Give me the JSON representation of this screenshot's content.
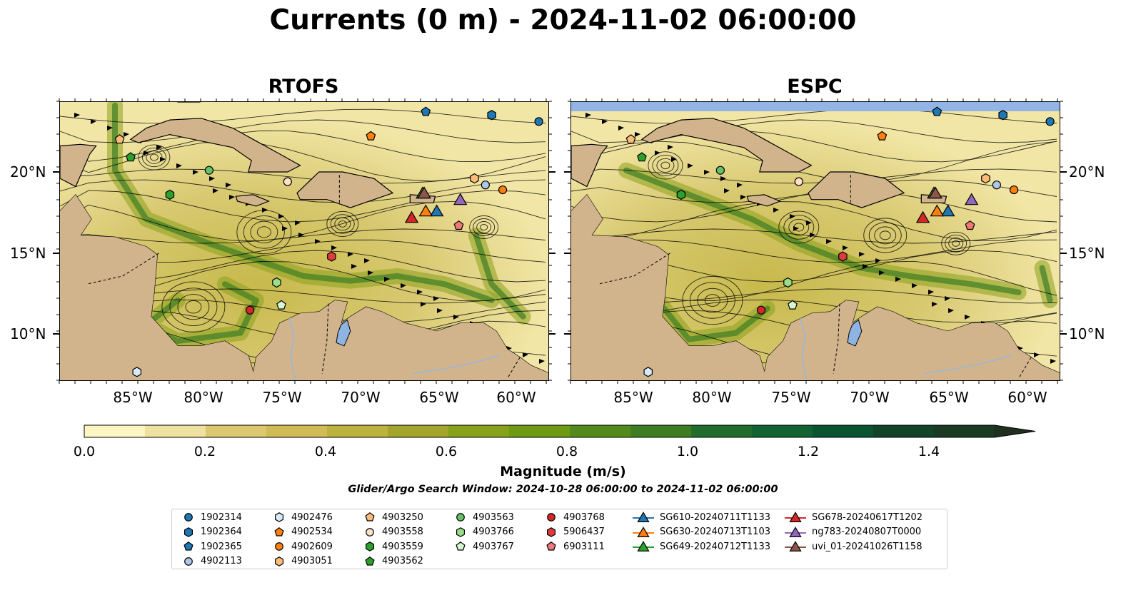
{
  "title": "Currents (0 m) - 2024-11-02 06:00:00",
  "panels": [
    {
      "title": "RTOFS"
    },
    {
      "title": "ESPC"
    }
  ],
  "lat_labels": [
    "20°N",
    "15°N",
    "10°N"
  ],
  "lon_labels": [
    "85°W",
    "80°W",
    "75°W",
    "70°W",
    "65°W",
    "60°W"
  ],
  "colorbar": {
    "label": "Magnitude (m/s)",
    "ticks": [
      "0.0",
      "0.2",
      "0.4",
      "0.6",
      "0.8",
      "1.0",
      "1.2",
      "1.4"
    ],
    "colors": [
      "#fdf6c3",
      "#efe1a0",
      "#dcc86e",
      "#cfbc55",
      "#bcb23e",
      "#a3a52c",
      "#88a11a",
      "#6f9a14",
      "#528b1c",
      "#3f7d23",
      "#226d2c",
      "#116331",
      "#0b5430",
      "#12442a",
      "#1b3a24",
      "#1f301f"
    ]
  },
  "search_window": "Glider/Argo Search Window: 2024-10-28 06:00:00 to 2024-11-02 06:00:00",
  "legend": {
    "columns": [
      [
        {
          "label": "1902314",
          "shape": "circle",
          "color": "#1f77b4"
        },
        {
          "label": "1902364",
          "shape": "hexagon",
          "color": "#1f77b4"
        },
        {
          "label": "1902365",
          "shape": "pentagon",
          "color": "#1f77b4"
        },
        {
          "label": "4902113",
          "shape": "circle",
          "color": "#aec7e8"
        }
      ],
      [
        {
          "label": "4902476",
          "shape": "hexagon",
          "color": "#d6eaf8"
        },
        {
          "label": "4902534",
          "shape": "pentagon",
          "color": "#ff7f0e"
        },
        {
          "label": "4902609",
          "shape": "circle",
          "color": "#ff7f0e"
        },
        {
          "label": "4903051",
          "shape": "hexagon",
          "color": "#ffbb78"
        }
      ],
      [
        {
          "label": "4903250",
          "shape": "pentagon",
          "color": "#ffbb78"
        },
        {
          "label": "4903558",
          "shape": "circle",
          "color": "#fde0c8"
        },
        {
          "label": "4903559",
          "shape": "hexagon",
          "color": "#2ca02c"
        },
        {
          "label": "4903562",
          "shape": "pentagon",
          "color": "#2ca02c"
        }
      ],
      [
        {
          "label": "4903563",
          "shape": "circle",
          "color": "#66c266"
        },
        {
          "label": "4903766",
          "shape": "hexagon",
          "color": "#98df8a"
        },
        {
          "label": "4903767",
          "shape": "pentagon",
          "color": "#d6f5d0"
        }
      ],
      [
        {
          "label": "4903768",
          "shape": "circle",
          "color": "#d62728"
        },
        {
          "label": "5906437",
          "shape": "hexagon",
          "color": "#e03b3b"
        },
        {
          "label": "6903111",
          "shape": "pentagon",
          "color": "#f07878"
        }
      ],
      [
        {
          "label": "SG610-20240711T1133",
          "shape": "triangle",
          "color": "#1f77b4"
        },
        {
          "label": "SG630-20240713T1103",
          "shape": "triangle",
          "color": "#ff7f0e"
        },
        {
          "label": "SG649-20240712T1133",
          "shape": "triangle",
          "color": "#2ca02c"
        }
      ],
      [
        {
          "label": "SG678-20240617T1202",
          "shape": "triangle",
          "color": "#d62728"
        },
        {
          "label": "ng783-20240807T0000",
          "shape": "triangle",
          "color": "#9467bd"
        },
        {
          "label": "uvi_01-20241026T1158",
          "shape": "triangle",
          "color": "#8c564b"
        }
      ]
    ]
  },
  "map_colors": {
    "land": "#d2b48c",
    "lake": "#8fb4e3",
    "ocean_low": "#f2e6a6",
    "ocean_mid": "#c7b94c",
    "ocean_high": "#3d7d24",
    "missing": "#93b5e6"
  },
  "markers": [
    {
      "id": "1902314",
      "shape": "circle",
      "color": "#1f77b4",
      "lon": -59.0,
      "lat": 23.0
    },
    {
      "id": "1902364",
      "shape": "hexagon",
      "color": "#1f77b4",
      "lon": -62.0,
      "lat": 23.4
    },
    {
      "id": "1902365",
      "shape": "pentagon",
      "color": "#1f77b4",
      "lon": -66.2,
      "lat": 23.6
    },
    {
      "id": "4902113",
      "shape": "circle",
      "color": "#aec7e8",
      "lon": -62.4,
      "lat": 19.1
    },
    {
      "id": "4902476",
      "shape": "hexagon",
      "color": "#d6eaf8",
      "lon": -84.6,
      "lat": 7.6
    },
    {
      "id": "4902534",
      "shape": "pentagon",
      "color": "#ff7f0e",
      "lon": -69.7,
      "lat": 22.1
    },
    {
      "id": "4902609",
      "shape": "circle",
      "color": "#ff7f0e",
      "lon": -61.3,
      "lat": 18.8
    },
    {
      "id": "4903051",
      "shape": "hexagon",
      "color": "#ffbb78",
      "lon": -63.1,
      "lat": 19.5
    },
    {
      "id": "4903250",
      "shape": "pentagon",
      "color": "#ffbb78",
      "lon": -85.7,
      "lat": 21.9
    },
    {
      "id": "4903558",
      "shape": "circle",
      "color": "#fde0c8",
      "lon": -75.0,
      "lat": 19.3
    },
    {
      "id": "4903559",
      "shape": "hexagon",
      "color": "#2ca02c",
      "lon": -82.5,
      "lat": 18.5
    },
    {
      "id": "4903562",
      "shape": "pentagon",
      "color": "#2ca02c",
      "lon": -85.0,
      "lat": 20.8
    },
    {
      "id": "4903563",
      "shape": "circle",
      "color": "#66c266",
      "lon": -80.0,
      "lat": 20.0
    },
    {
      "id": "4903766",
      "shape": "hexagon",
      "color": "#98df8a",
      "lon": -75.7,
      "lat": 13.1
    },
    {
      "id": "4903767",
      "shape": "pentagon",
      "color": "#d6f5d0",
      "lon": -75.4,
      "lat": 11.7
    },
    {
      "id": "4903768",
      "shape": "circle",
      "color": "#d62728",
      "lon": -77.4,
      "lat": 11.4
    },
    {
      "id": "5906437",
      "shape": "hexagon",
      "color": "#e03b3b",
      "lon": -72.2,
      "lat": 14.7
    },
    {
      "id": "6903111",
      "shape": "pentagon",
      "color": "#f07878",
      "lon": -64.1,
      "lat": 16.6
    },
    {
      "id": "SG610-20240711T1133",
      "shape": "triangle",
      "color": "#1f77b4",
      "lon": -65.5,
      "lat": 17.5
    },
    {
      "id": "SG630-20240713T1103",
      "shape": "triangle",
      "color": "#ff7f0e",
      "lon": -66.2,
      "lat": 17.5
    },
    {
      "id": "SG649-20240712T1133",
      "shape": "triangle",
      "color": "#2ca02c",
      "lon": -66.4,
      "lat": 18.6
    },
    {
      "id": "SG678-20240617T1202",
      "shape": "triangle",
      "color": "#d62728",
      "lon": -67.1,
      "lat": 17.1
    },
    {
      "id": "ng783-20240807T0000",
      "shape": "triangle",
      "color": "#9467bd",
      "lon": -64.0,
      "lat": 18.2
    },
    {
      "id": "uvi_01-20241026T1158",
      "shape": "triangle",
      "color": "#8c564b",
      "lon": -66.3,
      "lat": 18.6
    }
  ],
  "map_extent": {
    "lon_min": -89.5,
    "lon_max": -58.3,
    "lat_min": 7.0,
    "lat_max": 24.2
  }
}
